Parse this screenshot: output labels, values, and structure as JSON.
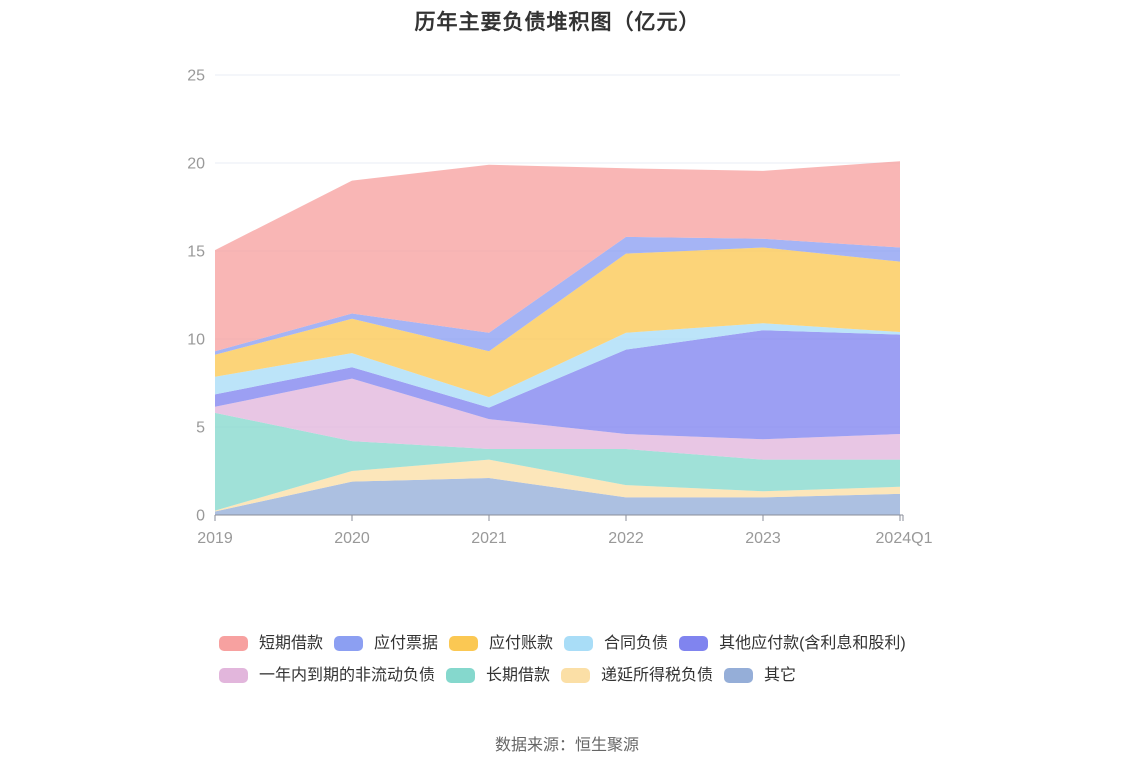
{
  "title": "历年主要负债堆积图（亿元）",
  "source": "数据来源：恒生聚源",
  "chart_data": {
    "type": "area",
    "stacked": true,
    "smooth": false,
    "title": "历年主要负债堆积图（亿元）",
    "xlabel": "",
    "ylabel": "",
    "categories": [
      "2019",
      "2020",
      "2021",
      "2022",
      "2023",
      "2024Q1"
    ],
    "ylim": [
      0,
      25
    ],
    "yticks": [
      0,
      5,
      10,
      15,
      20,
      25
    ],
    "grid": true,
    "legend_position": "bottom",
    "area_opacity": 0.78,
    "axis_label_color": "#999999",
    "axis_line_color": "#8A8E99",
    "gridline_color": "#E9EDF5",
    "series": [
      {
        "id": "short-term-borrowings",
        "name": "短期借款",
        "color": "#F7A1A0",
        "values": [
          5.75,
          7.55,
          9.55,
          3.9,
          3.85,
          4.9
        ]
      },
      {
        "id": "notes-payable",
        "name": "应付票据",
        "color": "#8C9FF2",
        "values": [
          0.2,
          0.3,
          1.05,
          0.95,
          0.5,
          0.8
        ]
      },
      {
        "id": "accounts-payable",
        "name": "应付账款",
        "color": "#FBC853",
        "values": [
          1.25,
          1.95,
          2.6,
          4.5,
          4.3,
          4.0
        ]
      },
      {
        "id": "contract-liabilities",
        "name": "合同负债",
        "color": "#A9DDF7",
        "values": [
          1.0,
          0.8,
          0.6,
          0.95,
          0.4,
          0.15
        ]
      },
      {
        "id": "other-payables",
        "name": "其他应付款(含利息和股利)",
        "color": "#8084EF",
        "values": [
          0.7,
          0.65,
          0.65,
          4.8,
          6.2,
          5.65
        ]
      },
      {
        "id": "non-current-liabilities-due-within-one-year",
        "name": "一年内到期的非流动负债",
        "color": "#E2B6DC",
        "values": [
          0.35,
          3.55,
          1.7,
          0.85,
          1.15,
          1.45
        ]
      },
      {
        "id": "long-term-borrowings",
        "name": "长期借款",
        "color": "#85D8CD",
        "values": [
          5.55,
          1.7,
          0.6,
          2.05,
          1.8,
          1.55
        ]
      },
      {
        "id": "deferred-tax-liabilities",
        "name": "递延所得税负债",
        "color": "#FBDFA6",
        "values": [
          0.05,
          0.6,
          1.05,
          0.7,
          0.35,
          0.4
        ]
      },
      {
        "id": "others",
        "name": "其它",
        "color": "#95AED8",
        "values": [
          0.2,
          1.9,
          2.1,
          1.0,
          1.0,
          1.2
        ]
      }
    ],
    "stack_order_bottom_to_top": [
      "others",
      "deferred-tax-liabilities",
      "long-term-borrowings",
      "non-current-liabilities-due-within-one-year",
      "other-payables",
      "contract-liabilities",
      "accounts-payable",
      "notes-payable",
      "short-term-borrowings"
    ],
    "totals": [
      15.05,
      19.0,
      19.9,
      19.7,
      19.55,
      20.1
    ]
  }
}
